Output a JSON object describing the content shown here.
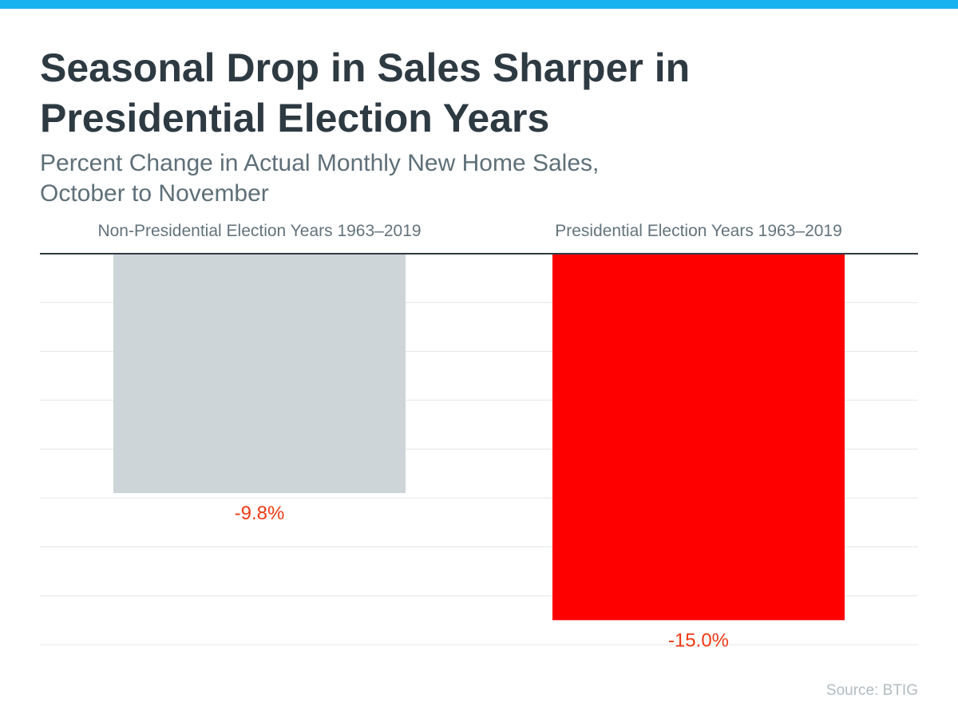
{
  "title_line1": "Seasonal Drop in Sales Sharper in",
  "title_line2": "Presidential Election Years",
  "subtitle_line1": "Percent Change in Actual Monthly New Home Sales,",
  "subtitle_line2": "October to November",
  "source": "Source: BTIG",
  "colors": {
    "top_bar": "#18b2f0",
    "title": "#2e3a42",
    "subtitle": "#5e6f78",
    "category_label": "#63737c",
    "source": "#b3bcc2",
    "axis_line": "#2e3a42",
    "gridline": "#e3e6e8",
    "value_label": "#ee3b14"
  },
  "chart_data": {
    "type": "bar",
    "orientation": "vertical",
    "categories": [
      "Non-Presidential Election Years 1963–2019",
      "Presidential Election Years 1963–2019"
    ],
    "values": [
      -9.8,
      -15.0
    ],
    "value_labels": [
      "-9.8%",
      "-15.0%"
    ],
    "bar_colors": [
      "#cdd5d8",
      "#fe0000"
    ],
    "ylim": [
      -16,
      0
    ],
    "gridline_step": 2,
    "grid": true,
    "category_labels_position": "top"
  }
}
